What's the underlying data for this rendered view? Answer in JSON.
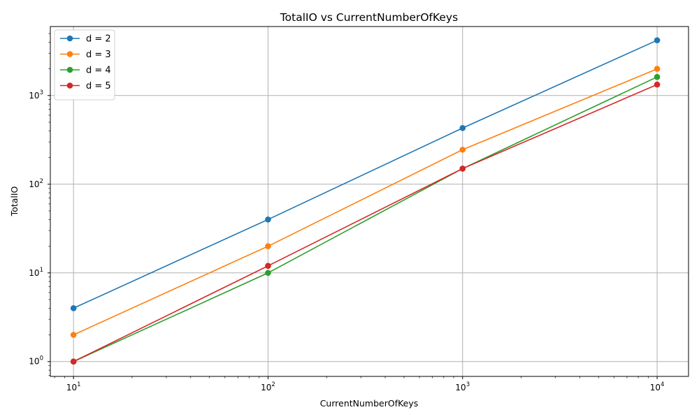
{
  "chart_data": {
    "type": "line",
    "title": "TotalIO vs CurrentNumberOfKeys",
    "xlabel": "CurrentNumberOfKeys",
    "ylabel": "TotalIO",
    "xscale": "log",
    "yscale": "log",
    "xlim": [
      7.6,
      14500
    ],
    "ylim": [
      0.68,
      6000
    ],
    "grid": true,
    "legend_position": "top-left",
    "x": [
      10,
      100,
      1000,
      10000
    ],
    "x_ticks": [
      {
        "value": 10,
        "base": "10",
        "exp": "1"
      },
      {
        "value": 100,
        "base": "10",
        "exp": "2"
      },
      {
        "value": 1000,
        "base": "10",
        "exp": "3"
      },
      {
        "value": 10000,
        "base": "10",
        "exp": "4"
      }
    ],
    "y_ticks": [
      {
        "value": 1,
        "base": "10",
        "exp": "0"
      },
      {
        "value": 10,
        "base": "10",
        "exp": "1"
      },
      {
        "value": 100,
        "base": "10",
        "exp": "2"
      },
      {
        "value": 1000,
        "base": "10",
        "exp": "3"
      }
    ],
    "series": [
      {
        "name": "d = 2",
        "color": "#1f77b4",
        "values": [
          4,
          40,
          430,
          4200
        ]
      },
      {
        "name": "d = 3",
        "color": "#ff7f0e",
        "values": [
          2,
          20,
          245,
          2000
        ]
      },
      {
        "name": "d = 4",
        "color": "#2ca02c",
        "values": [
          1,
          10,
          150,
          1620
        ]
      },
      {
        "name": "d = 5",
        "color": "#d62728",
        "values": [
          1,
          12,
          150,
          1330
        ]
      }
    ]
  }
}
